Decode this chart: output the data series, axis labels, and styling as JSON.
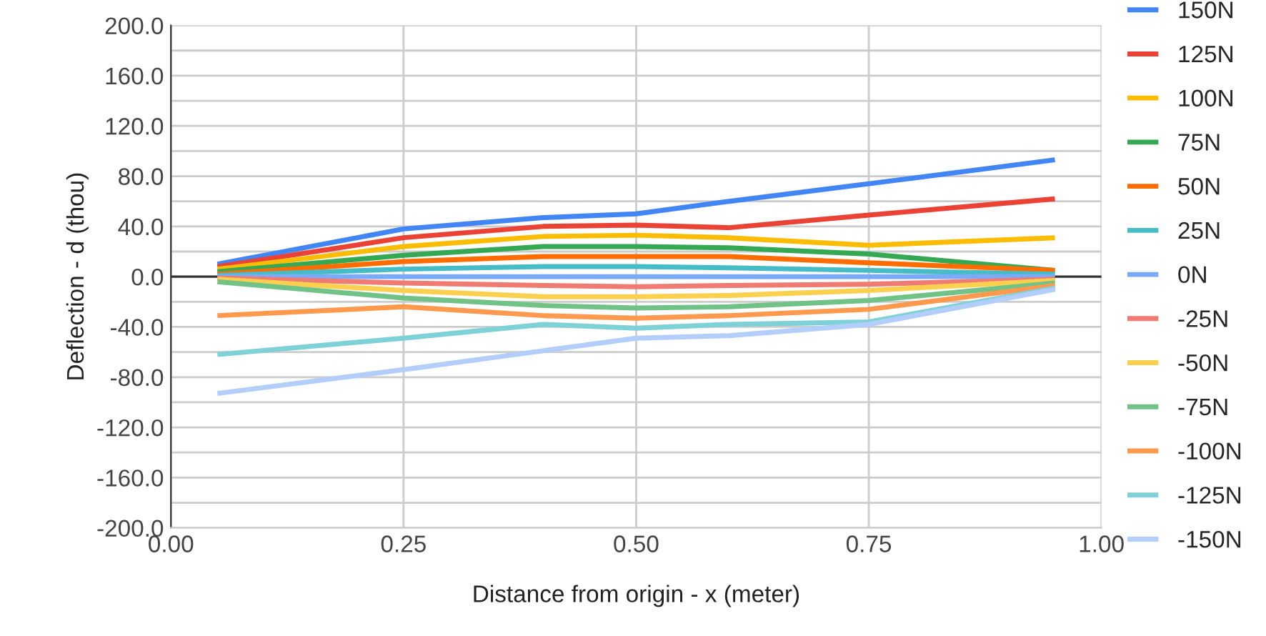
{
  "chart_data": {
    "type": "line",
    "xlabel": "Distance from origin - x (meter)",
    "ylabel": "Deflection - d (thou)",
    "x": [
      0.05,
      0.25,
      0.4,
      0.5,
      0.6,
      0.75,
      0.95
    ],
    "xlim": [
      0,
      1
    ],
    "xticks": [
      {
        "value": 0,
        "label": "0.00"
      },
      {
        "value": 0.25,
        "label": "0.25"
      },
      {
        "value": 0.5,
        "label": "0.50"
      },
      {
        "value": 0.75,
        "label": "0.75"
      },
      {
        "value": 1,
        "label": "1.00"
      }
    ],
    "ylim": [
      -200,
      200
    ],
    "yticks": [
      {
        "value": -200,
        "label": "-200.0"
      },
      {
        "value": -180,
        "label": null
      },
      {
        "value": -160,
        "label": "-160.0"
      },
      {
        "value": -140,
        "label": null
      },
      {
        "value": -120,
        "label": "-120.0"
      },
      {
        "value": -100,
        "label": null
      },
      {
        "value": -80,
        "label": "-80.0"
      },
      {
        "value": -60,
        "label": null
      },
      {
        "value": -40,
        "label": "-40.0"
      },
      {
        "value": -20,
        "label": null
      },
      {
        "value": 0,
        "label": "0.0"
      },
      {
        "value": 20,
        "label": null
      },
      {
        "value": 40,
        "label": "40.0"
      },
      {
        "value": 60,
        "label": null
      },
      {
        "value": 80,
        "label": "80.0"
      },
      {
        "value": 100,
        "label": null
      },
      {
        "value": 120,
        "label": "120.0"
      },
      {
        "value": 140,
        "label": null
      },
      {
        "value": 160,
        "label": "160.0"
      },
      {
        "value": 180,
        "label": null
      },
      {
        "value": 200,
        "label": "200.0"
      }
    ],
    "grid": true,
    "legend": "right",
    "marker": "none",
    "line_style": "solid",
    "ref_lines": [
      {
        "axis": "y",
        "value": 0,
        "label": null,
        "color": "#333333"
      }
    ],
    "series": [
      {
        "name": "150N",
        "color": "#4285f4",
        "values": [
          10,
          38,
          47,
          50,
          60,
          74,
          93
        ]
      },
      {
        "name": "125N",
        "color": "#ea4335",
        "values": [
          8,
          31,
          40,
          41,
          39,
          49,
          62
        ]
      },
      {
        "name": "100N",
        "color": "#fbbc04",
        "values": [
          6,
          24,
          32,
          33,
          31,
          25,
          31
        ]
      },
      {
        "name": "75N",
        "color": "#34a853",
        "values": [
          4,
          17,
          24,
          24,
          23,
          18,
          5
        ]
      },
      {
        "name": "50N",
        "color": "#ff6d01",
        "values": [
          2,
          12,
          16,
          16,
          16,
          11,
          5
        ]
      },
      {
        "name": "25N",
        "color": "#46bdc6",
        "values": [
          1,
          6,
          8,
          8,
          7,
          5,
          2
        ]
      },
      {
        "name": "0N",
        "color": "#7baaf7",
        "values": [
          0,
          0,
          0,
          0,
          0,
          0,
          0
        ]
      },
      {
        "name": "-25N",
        "color": "#f07b72",
        "values": [
          -1,
          -5,
          -7,
          -8,
          -7,
          -6,
          -2
        ]
      },
      {
        "name": "-50N",
        "color": "#fcd04f",
        "values": [
          -2,
          -11,
          -16,
          -16,
          -15,
          -11,
          -3
        ]
      },
      {
        "name": "-75N",
        "color": "#71c287",
        "values": [
          -4,
          -17,
          -23,
          -25,
          -24,
          -19,
          -5
        ]
      },
      {
        "name": "-100N",
        "color": "#ff994d",
        "values": [
          -31,
          -24,
          -31,
          -33,
          -31,
          -26,
          -7
        ]
      },
      {
        "name": "-125N",
        "color": "#7ed1d7",
        "values": [
          -62,
          -49,
          -38,
          -41,
          -38,
          -36,
          -9
        ]
      },
      {
        "name": "-150N",
        "color": "#b3cefb",
        "values": [
          -93,
          -74,
          -59,
          -49,
          -47,
          -38,
          -10
        ]
      }
    ]
  }
}
